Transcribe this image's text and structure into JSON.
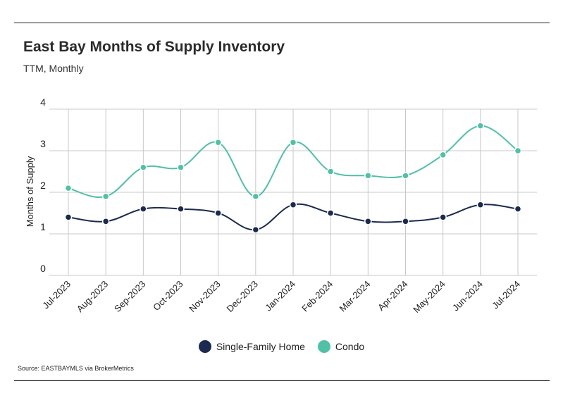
{
  "header": {
    "title": "East Bay Months of Supply Inventory",
    "subtitle": "TTM, Monthly"
  },
  "footer": {
    "source": "Source:  EASTBAYMLS via BrokerMetrics"
  },
  "chart_data": {
    "type": "line",
    "title": "East Bay Months of Supply Inventory",
    "subtitle": "TTM, Monthly",
    "xlabel": "",
    "ylabel": "Months of Supply",
    "ylim": [
      0,
      4
    ],
    "yticks": [
      "0",
      "1",
      "2",
      "3",
      "4"
    ],
    "grid": true,
    "legend_position": "bottom",
    "categories": [
      "Jul-2023",
      "Aug-2023",
      "Sep-2023",
      "Oct-2023",
      "Nov-2023",
      "Dec-2023",
      "Jan-2024",
      "Feb-2024",
      "Mar-2024",
      "Apr-2024",
      "May-2024",
      "Jun-2024",
      "Jul-2024"
    ],
    "series": [
      {
        "name": "Single-Family Home",
        "color": "#1b2a4e",
        "values": [
          1.4,
          1.3,
          1.6,
          1.6,
          1.5,
          1.1,
          1.7,
          1.5,
          1.3,
          1.3,
          1.4,
          1.7,
          1.6
        ]
      },
      {
        "name": "Condo",
        "color": "#4fc1a6",
        "values": [
          2.1,
          1.9,
          2.6,
          2.6,
          3.2,
          1.9,
          3.2,
          2.5,
          2.4,
          2.4,
          2.9,
          3.6,
          3.0
        ]
      }
    ]
  }
}
